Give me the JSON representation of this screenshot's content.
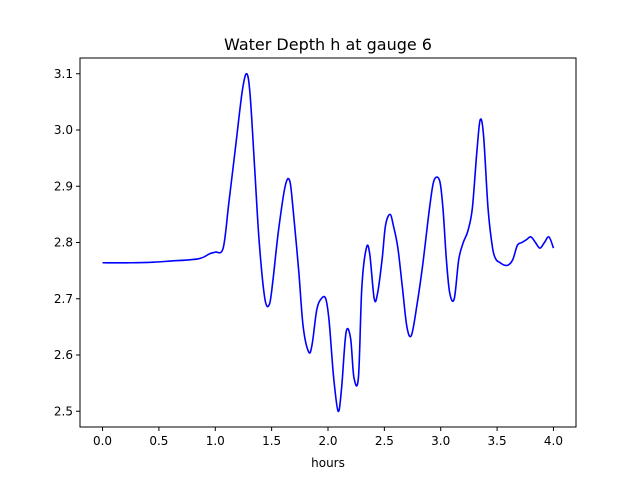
{
  "chart_data": {
    "type": "line",
    "title": "Water Depth h at gauge 6",
    "xlabel": "hours",
    "ylabel": "",
    "xlim": [
      -0.2,
      4.2
    ],
    "ylim": [
      2.472,
      3.128
    ],
    "xticks": [
      0.0,
      0.5,
      1.0,
      1.5,
      2.0,
      2.5,
      3.0,
      3.5,
      4.0
    ],
    "yticks": [
      2.5,
      2.6,
      2.7,
      2.8,
      2.9,
      3.0,
      3.1
    ],
    "xtick_labels": [
      "0.0",
      "0.5",
      "1.0",
      "1.5",
      "2.0",
      "2.5",
      "3.0",
      "3.5",
      "4.0"
    ],
    "ytick_labels": [
      "2.5",
      "2.6",
      "2.7",
      "2.8",
      "2.9",
      "3.0",
      "3.1"
    ],
    "grid": false,
    "series": [
      {
        "color": "#0000ff",
        "x": [
          0.0,
          0.25,
          0.45,
          0.6,
          0.85,
          0.95,
          1.0,
          1.07,
          1.12,
          1.18,
          1.24,
          1.28,
          1.31,
          1.35,
          1.39,
          1.44,
          1.48,
          1.51,
          1.56,
          1.62,
          1.66,
          1.69,
          1.74,
          1.78,
          1.83,
          1.86,
          1.9,
          1.94,
          1.98,
          2.01,
          2.05,
          2.09,
          2.12,
          2.16,
          2.2,
          2.23,
          2.27,
          2.3,
          2.34,
          2.37,
          2.41,
          2.44,
          2.48,
          2.51,
          2.55,
          2.58,
          2.62,
          2.66,
          2.7,
          2.74,
          2.79,
          2.84,
          2.9,
          2.94,
          2.99,
          3.02,
          3.05,
          3.08,
          3.12,
          3.16,
          3.2,
          3.24,
          3.28,
          3.32,
          3.35,
          3.38,
          3.42,
          3.46,
          3.49,
          3.52,
          3.56,
          3.6,
          3.64,
          3.68,
          3.72,
          3.76,
          3.8,
          3.84,
          3.88,
          3.92,
          3.96,
          4.0
        ],
        "y": [
          2.764,
          2.764,
          2.765,
          2.767,
          2.771,
          2.78,
          2.783,
          2.79,
          2.87,
          2.97,
          3.07,
          3.1,
          3.06,
          2.93,
          2.8,
          2.7,
          2.69,
          2.73,
          2.82,
          2.9,
          2.91,
          2.86,
          2.75,
          2.65,
          2.605,
          2.62,
          2.68,
          2.7,
          2.7,
          2.66,
          2.56,
          2.5,
          2.54,
          2.64,
          2.63,
          2.56,
          2.56,
          2.72,
          2.79,
          2.78,
          2.7,
          2.71,
          2.77,
          2.83,
          2.85,
          2.83,
          2.79,
          2.72,
          2.65,
          2.635,
          2.69,
          2.76,
          2.86,
          2.91,
          2.91,
          2.86,
          2.77,
          2.71,
          2.7,
          2.77,
          2.8,
          2.82,
          2.86,
          2.96,
          3.018,
          2.99,
          2.86,
          2.79,
          2.77,
          2.765,
          2.76,
          2.76,
          2.77,
          2.795,
          2.8,
          2.805,
          2.81,
          2.8,
          2.79,
          2.8,
          2.81,
          2.79
        ]
      }
    ]
  }
}
